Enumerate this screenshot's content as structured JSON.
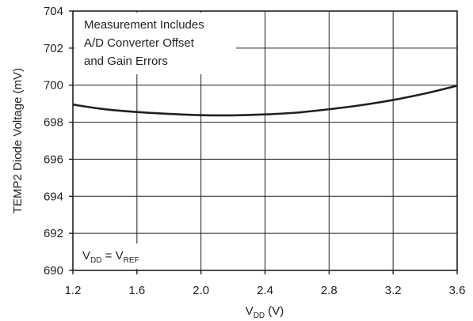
{
  "chart_data": {
    "type": "line",
    "title": "",
    "xlabel": {
      "main": "V",
      "sub": "DD",
      "rest": " (V)"
    },
    "ylabel": "TEMP2 Diode Voltage (mV)",
    "xlim": [
      1.2,
      3.6
    ],
    "ylim": [
      690,
      704
    ],
    "x_ticks": [
      "1.2",
      "1.6",
      "2.0",
      "2.4",
      "2.8",
      "3.2",
      "3.6"
    ],
    "y_ticks": [
      "704",
      "702",
      "700",
      "698",
      "696",
      "694",
      "692",
      "690"
    ],
    "grid": true,
    "annotations": {
      "top_left": [
        "Measurement Includes",
        "A/D Converter Offset",
        "and Gain Errors"
      ],
      "condition": {
        "v1": "V",
        "v1_sub": "DD",
        "eq": " = ",
        "v2": "V",
        "v2_sub": "REF"
      }
    },
    "series": [
      {
        "color": "#231f20",
        "x": [
          1.2,
          1.4,
          1.6,
          1.8,
          2.0,
          2.2,
          2.4,
          2.6,
          2.8,
          3.0,
          3.2,
          3.4,
          3.6
        ],
        "y": [
          698.95,
          698.7,
          698.55,
          698.45,
          698.38,
          698.37,
          698.42,
          698.52,
          698.7,
          698.92,
          699.2,
          699.55,
          699.97
        ]
      }
    ]
  }
}
